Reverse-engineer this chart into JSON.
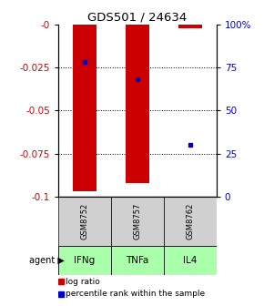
{
  "title": "GDS501 / 24634",
  "samples": [
    "GSM8752",
    "GSM8757",
    "GSM8762"
  ],
  "agents": [
    "IFNg",
    "TNFa",
    "IL4"
  ],
  "log_ratios": [
    -0.097,
    -0.092,
    -0.002
  ],
  "percentile_ranks": [
    78,
    68,
    30
  ],
  "ylim_left": [
    -0.1,
    0
  ],
  "ylim_right": [
    0,
    100
  ],
  "bar_color": "#cc0000",
  "dot_color": "#0000cc",
  "sample_bg_color": "#d0d0d0",
  "agent_color": "#aaffaa",
  "left_tick_labels": [
    "-0",
    "-0.025",
    "-0.05",
    "-0.075",
    "-0.1"
  ],
  "left_tick_vals": [
    0,
    -0.025,
    -0.05,
    -0.075,
    -0.1
  ],
  "right_tick_labels": [
    "100%",
    "75",
    "50",
    "25",
    "0"
  ],
  "right_tick_vals": [
    100,
    75,
    50,
    25,
    0
  ],
  "x_positions": [
    0.5,
    1.5,
    2.5
  ],
  "bar_width": 0.45,
  "figsize": [
    2.9,
    3.36
  ],
  "dpi": 100
}
